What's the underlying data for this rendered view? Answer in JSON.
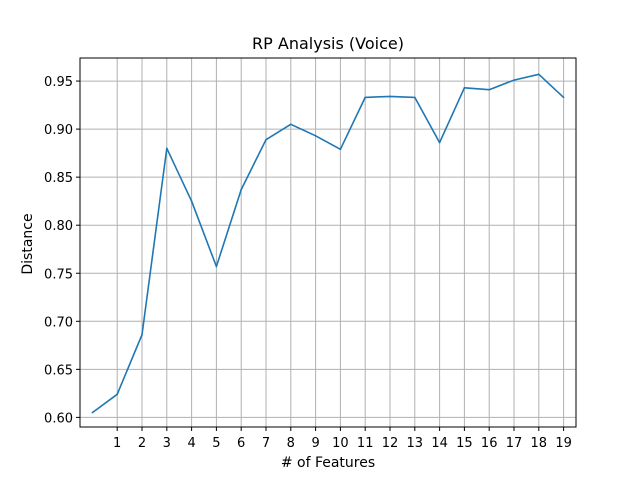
{
  "chart_data": {
    "type": "line",
    "title": "RP Analysis (Voice)",
    "xlabel": "# of Features",
    "ylabel": "Distance",
    "grid": true,
    "legend": "none",
    "xlim": [
      -0.5,
      19.5
    ],
    "ylim": [
      0.59,
      0.974
    ],
    "x_ticks": [
      1,
      2,
      3,
      4,
      5,
      6,
      7,
      8,
      9,
      10,
      11,
      12,
      13,
      14,
      15,
      16,
      17,
      18,
      19
    ],
    "y_ticks": [
      "0.60",
      "0.65",
      "0.70",
      "0.75",
      "0.80",
      "0.85",
      "0.90",
      "0.95"
    ],
    "series": [
      {
        "color": "#1f77b4",
        "x": [
          0,
          1,
          2,
          3,
          4,
          5,
          6,
          7,
          8,
          9,
          10,
          11,
          12,
          13,
          14,
          15,
          16,
          17,
          18,
          19
        ],
        "y": [
          0.605,
          0.624,
          0.686,
          0.88,
          0.825,
          0.757,
          0.837,
          0.889,
          0.905,
          0.893,
          0.879,
          0.933,
          0.934,
          0.933,
          0.886,
          0.943,
          0.941,
          0.951,
          0.957,
          0.933
        ]
      }
    ]
  }
}
